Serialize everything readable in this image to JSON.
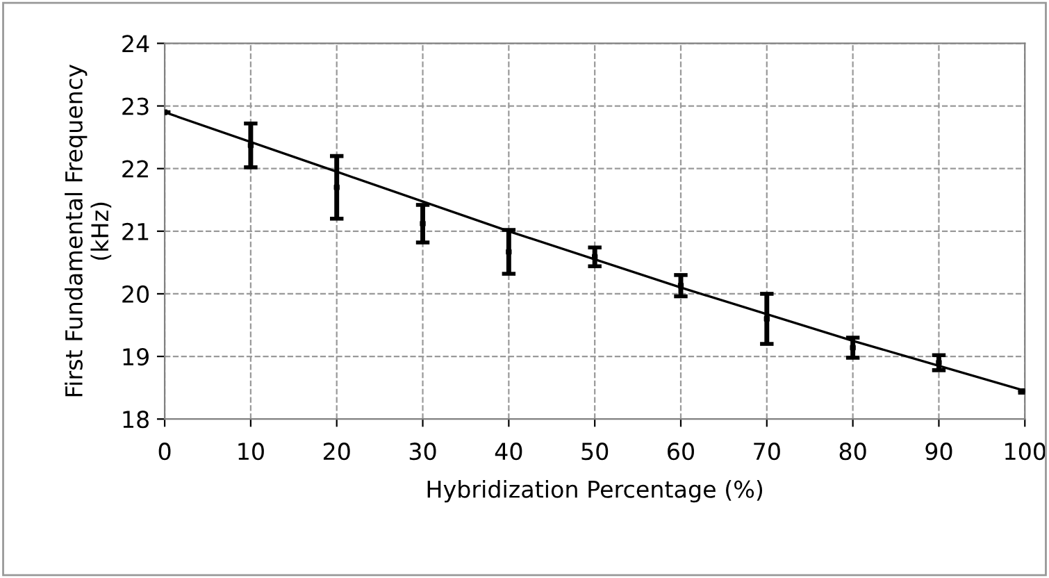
{
  "chart_data": {
    "type": "scatter",
    "xlabel": "Hybridization Percentage (%)",
    "ylabel": "First Fundamental Frequency\n(kHz)",
    "xlim": [
      0,
      100
    ],
    "xticks": [
      0,
      10,
      20,
      30,
      40,
      50,
      60,
      70,
      80,
      90,
      100
    ],
    "ylim": [
      18,
      24
    ],
    "yticks": [
      18,
      19,
      20,
      21,
      22,
      23,
      24
    ],
    "grid": true,
    "legend": false,
    "series": [
      {
        "type": "line",
        "color": "#000000",
        "x": [
          0,
          20,
          40,
          60,
          80,
          100
        ],
        "values": [
          22.9,
          21.95,
          21.0,
          20.1,
          19.25,
          18.45
        ]
      },
      {
        "color": "#000000",
        "x": [
          0,
          10,
          20,
          30,
          40,
          50,
          60,
          70,
          80,
          90,
          100
        ],
        "values": [
          22.9,
          22.37,
          21.7,
          21.12,
          20.67,
          20.59,
          20.13,
          19.6,
          19.14,
          18.9,
          18.44
        ],
        "errors": [
          null,
          [
            22.02,
            22.72
          ],
          [
            21.2,
            22.2
          ],
          [
            20.82,
            21.42
          ],
          [
            20.32,
            21.02
          ],
          [
            20.44,
            20.74
          ],
          [
            19.96,
            20.3
          ],
          [
            19.2,
            20.0
          ],
          [
            18.98,
            19.3
          ],
          [
            18.78,
            19.02
          ],
          [
            18.42,
            18.46
          ]
        ]
      }
    ]
  }
}
